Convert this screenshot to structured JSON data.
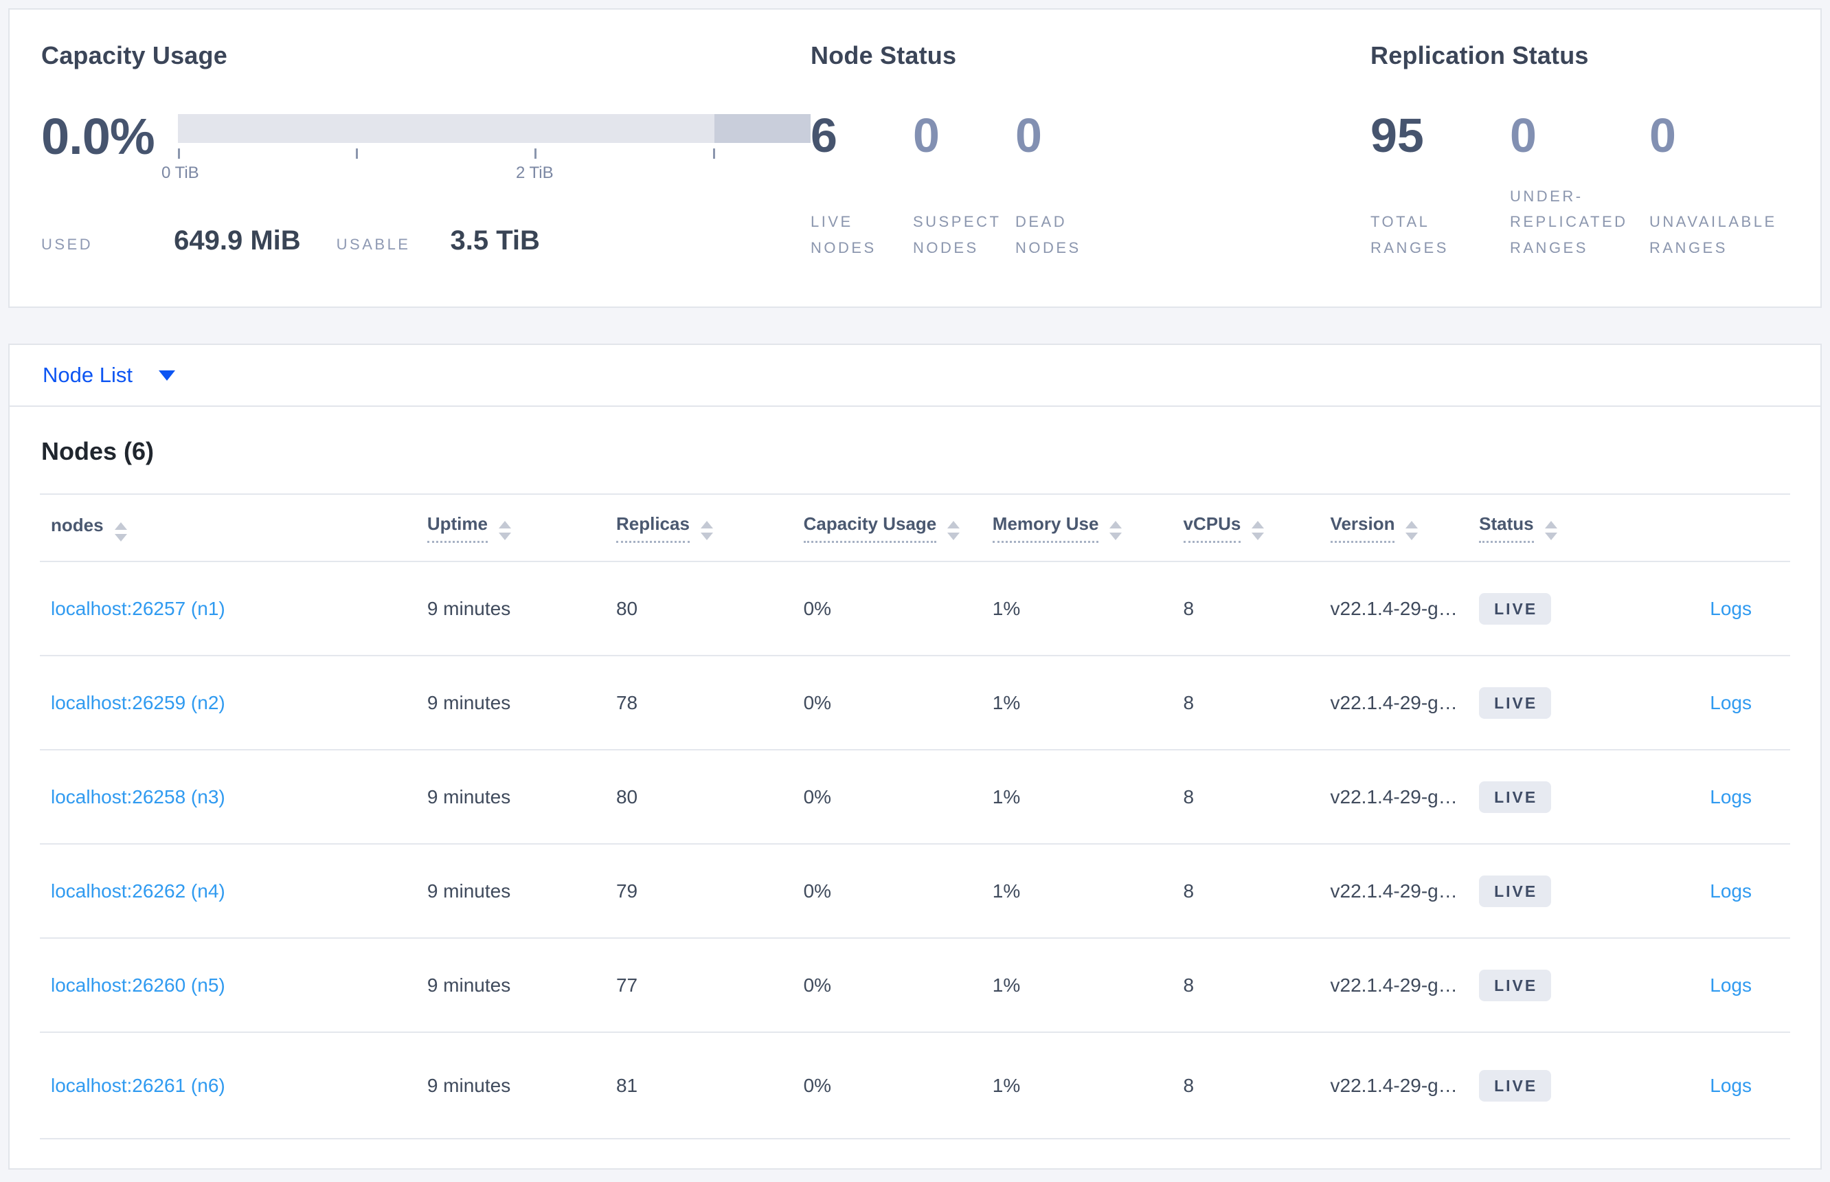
{
  "summary": {
    "capacity": {
      "title": "Capacity Usage",
      "pct": "0.0%",
      "tick0": "0 TiB",
      "tick2": "2 TiB",
      "used_label": "USED",
      "used_value": "649.9 MiB",
      "usable_label": "USABLE",
      "usable_value": "3.5 TiB",
      "chart_data": {
        "type": "bar",
        "title": "Capacity Usage",
        "used": "649.9 MiB",
        "usable": "3.5 TiB",
        "used_pct": 0.0,
        "axis_ticks_tib": [
          0,
          1,
          2,
          3
        ],
        "axis_labeled_ticks": [
          "0 TiB",
          "2 TiB"
        ],
        "bar_light_segment_tib": [
          0,
          3.0
        ],
        "bar_dark_segment_tib": [
          3.0,
          3.55
        ]
      }
    },
    "node_status": {
      "title": "Node Status",
      "stats": [
        {
          "value": "6",
          "label": "LIVE NODES",
          "muted": false
        },
        {
          "value": "0",
          "label": "SUSPECT NODES",
          "muted": true
        },
        {
          "value": "0",
          "label": "DEAD NODES",
          "muted": true
        }
      ]
    },
    "replication": {
      "title": "Replication Status",
      "stats": [
        {
          "value": "95",
          "label": "TOTAL RANGES",
          "muted": false
        },
        {
          "value": "0",
          "label": "UNDER-REPLICATED RANGES",
          "muted": true
        },
        {
          "value": "0",
          "label": "UNAVAILABLE RANGES",
          "muted": true
        }
      ]
    }
  },
  "nodelist": {
    "label": "Node List"
  },
  "nodes": {
    "title": "Nodes (6)",
    "headers": [
      "nodes",
      "Uptime",
      "Replicas",
      "Capacity Usage",
      "Memory Use",
      "vCPUs",
      "Version",
      "Status"
    ],
    "rows": [
      {
        "node": "localhost:26257 (n1)",
        "uptime": "9 minutes",
        "replicas": "80",
        "capacity": "0%",
        "memory": "1%",
        "vcpus": "8",
        "version": "v22.1.4-29-g…",
        "status": "LIVE",
        "logs": "Logs"
      },
      {
        "node": "localhost:26259 (n2)",
        "uptime": "9 minutes",
        "replicas": "78",
        "capacity": "0%",
        "memory": "1%",
        "vcpus": "8",
        "version": "v22.1.4-29-g…",
        "status": "LIVE",
        "logs": "Logs"
      },
      {
        "node": "localhost:26258 (n3)",
        "uptime": "9 minutes",
        "replicas": "80",
        "capacity": "0%",
        "memory": "1%",
        "vcpus": "8",
        "version": "v22.1.4-29-g…",
        "status": "LIVE",
        "logs": "Logs"
      },
      {
        "node": "localhost:26262 (n4)",
        "uptime": "9 minutes",
        "replicas": "79",
        "capacity": "0%",
        "memory": "1%",
        "vcpus": "8",
        "version": "v22.1.4-29-g…",
        "status": "LIVE",
        "logs": "Logs"
      },
      {
        "node": "localhost:26260 (n5)",
        "uptime": "9 minutes",
        "replicas": "77",
        "capacity": "0%",
        "memory": "1%",
        "vcpus": "8",
        "version": "v22.1.4-29-g…",
        "status": "LIVE",
        "logs": "Logs"
      },
      {
        "node": "localhost:26261 (n6)",
        "uptime": "9 minutes",
        "replicas": "81",
        "capacity": "0%",
        "memory": "1%",
        "vcpus": "8",
        "version": "v22.1.4-29-g…",
        "status": "LIVE",
        "logs": "Logs"
      }
    ],
    "colors": {
      "accent_blue": "#0d55f2",
      "link_blue": "#2f9af0",
      "stat_primary": "#46546e",
      "stat_muted": "#8290b2",
      "badge_bg": "#e7eaf1",
      "bar_light": "#e3e5ec",
      "bar_dark": "#c9cedb"
    }
  }
}
